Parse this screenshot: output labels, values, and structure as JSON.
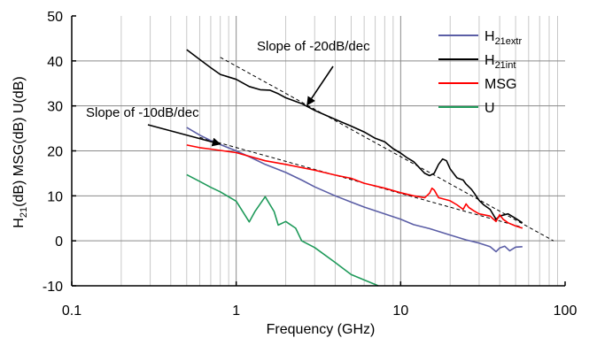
{
  "chart_data": {
    "type": "line",
    "xscale": "log",
    "xlim": [
      0.1,
      100
    ],
    "ylim": [
      -10,
      50
    ],
    "x_ticks": [
      {
        "value": 0.1,
        "label": "0.1"
      },
      {
        "value": 1,
        "label": "1"
      },
      {
        "value": 10,
        "label": "10"
      },
      {
        "value": 100,
        "label": "100"
      }
    ],
    "y_ticks": [
      {
        "value": -10,
        "label": "-10"
      },
      {
        "value": 0,
        "label": "0"
      },
      {
        "value": 10,
        "label": "10"
      },
      {
        "value": 20,
        "label": "20"
      },
      {
        "value": 30,
        "label": "30"
      },
      {
        "value": 40,
        "label": "40"
      },
      {
        "value": 50,
        "label": "50"
      }
    ],
    "xlabel": "Frequency (GHz)",
    "ylabel": {
      "h_main": "H",
      "h_sub": "21",
      "rest": "(dB)  MSG(dB)  U(dB)"
    },
    "grid": true,
    "legend_position": "top-right",
    "series": [
      {
        "name": "H",
        "name_sub": "21extr",
        "color": "#5b5ea6",
        "points": [
          [
            0.5,
            25.2
          ],
          [
            0.6,
            23.5
          ],
          [
            0.7,
            22.3
          ],
          [
            0.8,
            21.4
          ],
          [
            1.0,
            20.0
          ],
          [
            1.2,
            18.7
          ],
          [
            1.5,
            17.0
          ],
          [
            2.0,
            15.2
          ],
          [
            2.5,
            13.5
          ],
          [
            3.0,
            12.0
          ],
          [
            4.0,
            10.0
          ],
          [
            5.0,
            8.6
          ],
          [
            6.0,
            7.5
          ],
          [
            8.0,
            6.0
          ],
          [
            10.0,
            4.8
          ],
          [
            12.0,
            3.6
          ],
          [
            15.0,
            2.7
          ],
          [
            20.0,
            1.3
          ],
          [
            25.0,
            0.2
          ],
          [
            30.0,
            -0.5
          ],
          [
            35.0,
            -1.3
          ],
          [
            38.0,
            -2.4
          ],
          [
            40.0,
            -1.6
          ],
          [
            43.0,
            -1.2
          ],
          [
            46.0,
            -2.2
          ],
          [
            50.0,
            -1.4
          ],
          [
            55.0,
            -1.3
          ]
        ]
      },
      {
        "name": "H",
        "name_sub": "21int",
        "color": "#000000",
        "points": [
          [
            0.5,
            42.5
          ],
          [
            0.6,
            40.3
          ],
          [
            0.7,
            38.5
          ],
          [
            0.8,
            37.0
          ],
          [
            1.0,
            35.9
          ],
          [
            1.2,
            34.3
          ],
          [
            1.4,
            33.6
          ],
          [
            1.6,
            33.5
          ],
          [
            1.8,
            32.7
          ],
          [
            2.0,
            31.8
          ],
          [
            2.5,
            30.5
          ],
          [
            3.0,
            29.0
          ],
          [
            4.0,
            27.0
          ],
          [
            5.0,
            25.5
          ],
          [
            6.0,
            24.2
          ],
          [
            7.0,
            22.8
          ],
          [
            8.0,
            22.0
          ],
          [
            9.0,
            20.5
          ],
          [
            10.0,
            19.5
          ],
          [
            11.0,
            18.4
          ],
          [
            12.0,
            17.6
          ],
          [
            14.0,
            15.0
          ],
          [
            15.0,
            14.5
          ],
          [
            16.0,
            15.0
          ],
          [
            17.0,
            17.0
          ],
          [
            18.0,
            18.2
          ],
          [
            19.0,
            17.8
          ],
          [
            20.0,
            16.0
          ],
          [
            22.0,
            14.0
          ],
          [
            24.0,
            13.5
          ],
          [
            25.0,
            12.6
          ],
          [
            26.0,
            12.0
          ],
          [
            27.0,
            11.4
          ],
          [
            28.0,
            10.6
          ],
          [
            30.0,
            9.0
          ],
          [
            32.0,
            8.0
          ],
          [
            35.0,
            7.0
          ],
          [
            38.0,
            4.8
          ],
          [
            40.0,
            5.5
          ],
          [
            45.0,
            6.0
          ],
          [
            50.0,
            5.0
          ],
          [
            55.0,
            4.0
          ]
        ]
      },
      {
        "name": "MSG",
        "color": "#ff0000",
        "points": [
          [
            0.5,
            21.3
          ],
          [
            0.6,
            20.7
          ],
          [
            0.7,
            20.4
          ],
          [
            0.8,
            20.1
          ],
          [
            1.0,
            19.6
          ],
          [
            1.5,
            17.8
          ],
          [
            2.0,
            17.0
          ],
          [
            3.0,
            15.7
          ],
          [
            4.0,
            14.6
          ],
          [
            5.0,
            13.9
          ],
          [
            6.0,
            12.8
          ],
          [
            8.0,
            11.7
          ],
          [
            10.0,
            10.7
          ],
          [
            12.0,
            10.0
          ],
          [
            14.0,
            9.6
          ],
          [
            15.0,
            10.6
          ],
          [
            15.5,
            11.7
          ],
          [
            16.0,
            11.3
          ],
          [
            17.0,
            9.6
          ],
          [
            20.0,
            8.9
          ],
          [
            22.0,
            8.0
          ],
          [
            24.0,
            7.0
          ],
          [
            25.0,
            8.2
          ],
          [
            26.0,
            7.4
          ],
          [
            28.0,
            6.6
          ],
          [
            30.0,
            6.0
          ],
          [
            35.0,
            5.5
          ],
          [
            38.0,
            4.3
          ],
          [
            40.0,
            5.8
          ],
          [
            42.0,
            4.8
          ],
          [
            45.0,
            4.0
          ],
          [
            50.0,
            3.3
          ],
          [
            55.0,
            2.8
          ]
        ]
      },
      {
        "name": "U",
        "color": "#1f9a5a",
        "points": [
          [
            0.5,
            14.7
          ],
          [
            0.6,
            13.2
          ],
          [
            0.7,
            11.9
          ],
          [
            0.8,
            10.9
          ],
          [
            1.0,
            8.8
          ],
          [
            1.2,
            4.2
          ],
          [
            1.3,
            6.5
          ],
          [
            1.5,
            9.8
          ],
          [
            1.7,
            6.5
          ],
          [
            1.8,
            3.5
          ],
          [
            2.0,
            4.3
          ],
          [
            2.3,
            2.8
          ],
          [
            2.5,
            0.0
          ],
          [
            3.0,
            -1.5
          ],
          [
            4.0,
            -4.8
          ],
          [
            5.0,
            -7.5
          ],
          [
            6.0,
            -8.7
          ],
          [
            7.0,
            -9.7
          ],
          [
            7.3,
            -10.0
          ]
        ]
      }
    ],
    "reference_lines": [
      {
        "label": "Slope of -20dB/dec",
        "points": [
          [
            0.8,
            40.8
          ],
          [
            85,
            0
          ]
        ]
      },
      {
        "label": "Slope of -10dB/dec",
        "points": [
          [
            0.6,
            23.0
          ],
          [
            55,
            3.0
          ]
        ]
      }
    ],
    "annotations": [
      {
        "text": "Slope of -20dB/dec",
        "target": [
          2.7,
          30.2
        ]
      },
      {
        "text": "Slope of -10dB/dec",
        "target": [
          0.8,
          21.5
        ]
      }
    ]
  }
}
